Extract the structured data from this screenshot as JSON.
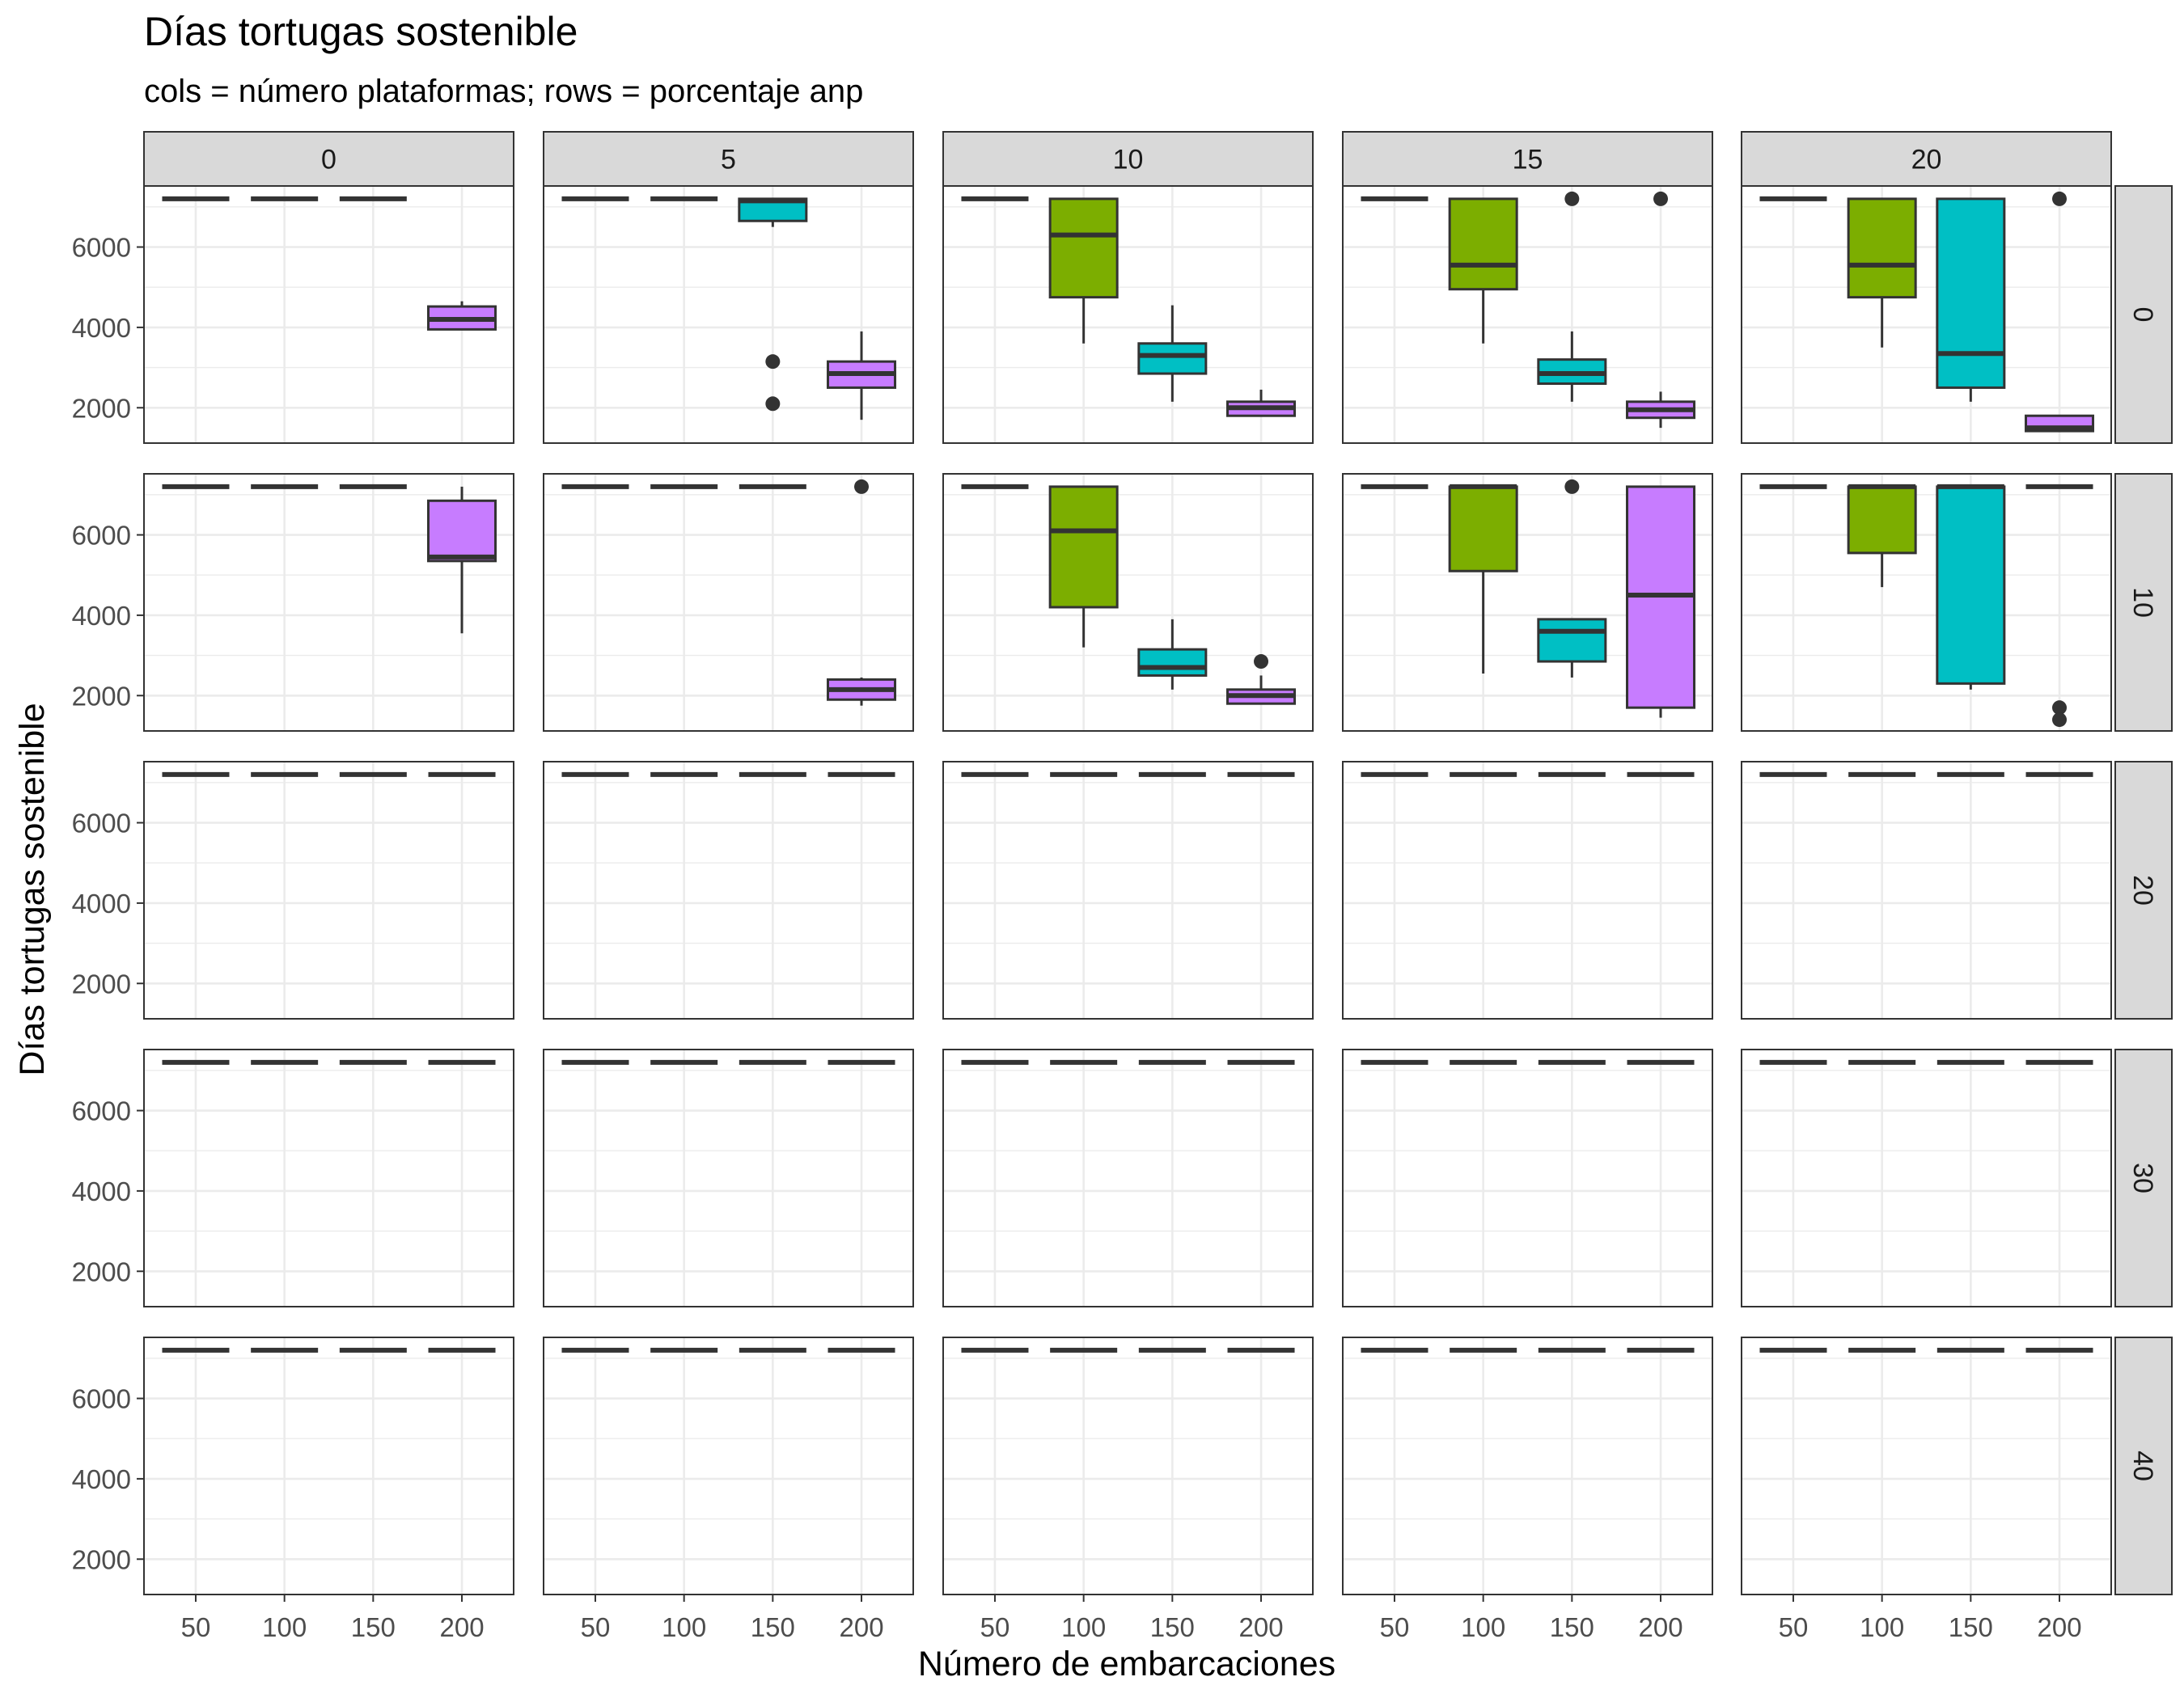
{
  "chart_data": {
    "type": "boxplot",
    "title": "Días tortugas sostenible",
    "subtitle": "cols = número plataformas; rows = porcentaje anp",
    "xlabel": "Número de embarcaciones",
    "ylabel": "Días tortugas sostenible",
    "x_categories": [
      "50",
      "100",
      "150",
      "200"
    ],
    "facet_cols": [
      "0",
      "5",
      "10",
      "15",
      "20"
    ],
    "facet_rows": [
      "0",
      "10",
      "20",
      "30",
      "40"
    ],
    "yticks": [
      2000,
      4000,
      6000
    ],
    "ylim": [
      1120,
      7520
    ],
    "grid": true,
    "legend": "none",
    "fill_colors": {
      "50": "#F8766D",
      "100": "#7CAE00",
      "150": "#00BFC4",
      "200": "#C77CFF"
    },
    "panels": [
      {
        "row": "0",
        "col": "0",
        "boxes": [
          {
            "x": "50",
            "q1": 7200,
            "median": 7200,
            "q3": 7200,
            "lo": 7200,
            "hi": 7200,
            "outliers": []
          },
          {
            "x": "100",
            "q1": 7200,
            "median": 7200,
            "q3": 7200,
            "lo": 7200,
            "hi": 7200,
            "outliers": []
          },
          {
            "x": "150",
            "q1": 7200,
            "median": 7200,
            "q3": 7200,
            "lo": 7200,
            "hi": 7200,
            "outliers": []
          },
          {
            "x": "200",
            "q1": 3950,
            "median": 4200,
            "q3": 4520,
            "lo": 3950,
            "hi": 4650,
            "outliers": []
          }
        ]
      },
      {
        "row": "0",
        "col": "5",
        "boxes": [
          {
            "x": "50",
            "q1": 7200,
            "median": 7200,
            "q3": 7200,
            "lo": 7200,
            "hi": 7200,
            "outliers": []
          },
          {
            "x": "100",
            "q1": 7200,
            "median": 7200,
            "q3": 7200,
            "lo": 7200,
            "hi": 7200,
            "outliers": []
          },
          {
            "x": "150",
            "q1": 6650,
            "median": 7150,
            "q3": 7200,
            "lo": 6500,
            "hi": 7200,
            "outliers": [
              3150,
              2100
            ]
          },
          {
            "x": "200",
            "q1": 2500,
            "median": 2850,
            "q3": 3150,
            "lo": 1700,
            "hi": 3900,
            "outliers": []
          }
        ]
      },
      {
        "row": "0",
        "col": "10",
        "boxes": [
          {
            "x": "50",
            "q1": 7200,
            "median": 7200,
            "q3": 7200,
            "lo": 7200,
            "hi": 7200,
            "outliers": []
          },
          {
            "x": "100",
            "q1": 4750,
            "median": 6300,
            "q3": 7200,
            "lo": 3600,
            "hi": 7200,
            "outliers": []
          },
          {
            "x": "150",
            "q1": 2850,
            "median": 3300,
            "q3": 3600,
            "lo": 2150,
            "hi": 4550,
            "outliers": []
          },
          {
            "x": "200",
            "q1": 1800,
            "median": 2000,
            "q3": 2150,
            "lo": 1800,
            "hi": 2450,
            "outliers": []
          }
        ]
      },
      {
        "row": "0",
        "col": "15",
        "boxes": [
          {
            "x": "50",
            "q1": 7200,
            "median": 7200,
            "q3": 7200,
            "lo": 7200,
            "hi": 7200,
            "outliers": []
          },
          {
            "x": "100",
            "q1": 4950,
            "median": 5550,
            "q3": 7200,
            "lo": 3600,
            "hi": 7200,
            "outliers": []
          },
          {
            "x": "150",
            "q1": 2600,
            "median": 2850,
            "q3": 3200,
            "lo": 2150,
            "hi": 3900,
            "outliers": [
              7200
            ]
          },
          {
            "x": "200",
            "q1": 1750,
            "median": 1950,
            "q3": 2150,
            "lo": 1500,
            "hi": 2400,
            "outliers": [
              7200
            ]
          }
        ]
      },
      {
        "row": "0",
        "col": "20",
        "boxes": [
          {
            "x": "50",
            "q1": 7200,
            "median": 7200,
            "q3": 7200,
            "lo": 7200,
            "hi": 7200,
            "outliers": []
          },
          {
            "x": "100",
            "q1": 4750,
            "median": 5550,
            "q3": 7200,
            "lo": 3500,
            "hi": 7200,
            "outliers": []
          },
          {
            "x": "150",
            "q1": 2500,
            "median": 3350,
            "q3": 7200,
            "lo": 2150,
            "hi": 7200,
            "outliers": []
          },
          {
            "x": "200",
            "q1": 1420,
            "median": 1500,
            "q3": 1800,
            "lo": 1420,
            "hi": 1800,
            "outliers": [
              7200
            ]
          }
        ]
      },
      {
        "row": "10",
        "col": "0",
        "boxes": [
          {
            "x": "50",
            "q1": 7200,
            "median": 7200,
            "q3": 7200,
            "lo": 7200,
            "hi": 7200,
            "outliers": []
          },
          {
            "x": "100",
            "q1": 7200,
            "median": 7200,
            "q3": 7200,
            "lo": 7200,
            "hi": 7200,
            "outliers": []
          },
          {
            "x": "150",
            "q1": 7200,
            "median": 7200,
            "q3": 7200,
            "lo": 7200,
            "hi": 7200,
            "outliers": []
          },
          {
            "x": "200",
            "q1": 5350,
            "median": 5450,
            "q3": 6850,
            "lo": 3550,
            "hi": 7200,
            "outliers": []
          }
        ]
      },
      {
        "row": "10",
        "col": "5",
        "boxes": [
          {
            "x": "50",
            "q1": 7200,
            "median": 7200,
            "q3": 7200,
            "lo": 7200,
            "hi": 7200,
            "outliers": []
          },
          {
            "x": "100",
            "q1": 7200,
            "median": 7200,
            "q3": 7200,
            "lo": 7200,
            "hi": 7200,
            "outliers": []
          },
          {
            "x": "150",
            "q1": 7200,
            "median": 7200,
            "q3": 7200,
            "lo": 7200,
            "hi": 7200,
            "outliers": []
          },
          {
            "x": "200",
            "q1": 1900,
            "median": 2150,
            "q3": 2400,
            "lo": 1750,
            "hi": 2450,
            "outliers": [
              7200
            ]
          }
        ]
      },
      {
        "row": "10",
        "col": "10",
        "boxes": [
          {
            "x": "50",
            "q1": 7200,
            "median": 7200,
            "q3": 7200,
            "lo": 7200,
            "hi": 7200,
            "outliers": []
          },
          {
            "x": "100",
            "q1": 4200,
            "median": 6100,
            "q3": 7200,
            "lo": 3200,
            "hi": 7200,
            "outliers": []
          },
          {
            "x": "150",
            "q1": 2500,
            "median": 2700,
            "q3": 3150,
            "lo": 2150,
            "hi": 3900,
            "outliers": []
          },
          {
            "x": "200",
            "q1": 1800,
            "median": 2000,
            "q3": 2150,
            "lo": 1800,
            "hi": 2500,
            "outliers": [
              2850
            ]
          }
        ]
      },
      {
        "row": "10",
        "col": "15",
        "boxes": [
          {
            "x": "50",
            "q1": 7200,
            "median": 7200,
            "q3": 7200,
            "lo": 7200,
            "hi": 7200,
            "outliers": []
          },
          {
            "x": "100",
            "q1": 5100,
            "median": 7200,
            "q3": 7200,
            "lo": 2550,
            "hi": 7200,
            "outliers": []
          },
          {
            "x": "150",
            "q1": 2850,
            "median": 3600,
            "q3": 3900,
            "lo": 2450,
            "hi": 3900,
            "outliers": [
              7200
            ]
          },
          {
            "x": "200",
            "q1": 1700,
            "median": 4500,
            "q3": 7200,
            "lo": 1450,
            "hi": 7200,
            "outliers": []
          }
        ]
      },
      {
        "row": "10",
        "col": "20",
        "boxes": [
          {
            "x": "50",
            "q1": 7200,
            "median": 7200,
            "q3": 7200,
            "lo": 7200,
            "hi": 7200,
            "outliers": []
          },
          {
            "x": "100",
            "q1": 5550,
            "median": 7200,
            "q3": 7200,
            "lo": 4700,
            "hi": 7200,
            "outliers": []
          },
          {
            "x": "150",
            "q1": 2300,
            "median": 7200,
            "q3": 7200,
            "lo": 2150,
            "hi": 7200,
            "outliers": []
          },
          {
            "x": "200",
            "q1": 7200,
            "median": 7200,
            "q3": 7200,
            "lo": 7200,
            "hi": 7200,
            "outliers": [
              1700,
              1400
            ]
          }
        ]
      },
      {
        "row": "20",
        "col": "0",
        "all": 7200
      },
      {
        "row": "20",
        "col": "5",
        "all": 7200
      },
      {
        "row": "20",
        "col": "10",
        "all": 7200
      },
      {
        "row": "20",
        "col": "15",
        "all": 7200
      },
      {
        "row": "20",
        "col": "20",
        "all": 7200
      },
      {
        "row": "30",
        "col": "0",
        "all": 7200
      },
      {
        "row": "30",
        "col": "5",
        "all": 7200
      },
      {
        "row": "30",
        "col": "10",
        "all": 7200
      },
      {
        "row": "30",
        "col": "15",
        "all": 7200
      },
      {
        "row": "30",
        "col": "20",
        "all": 7200
      },
      {
        "row": "40",
        "col": "0",
        "all": 7200
      },
      {
        "row": "40",
        "col": "5",
        "all": 7200
      },
      {
        "row": "40",
        "col": "10",
        "all": 7200
      },
      {
        "row": "40",
        "col": "15",
        "all": 7200
      },
      {
        "row": "40",
        "col": "20",
        "all": 7200
      }
    ]
  }
}
